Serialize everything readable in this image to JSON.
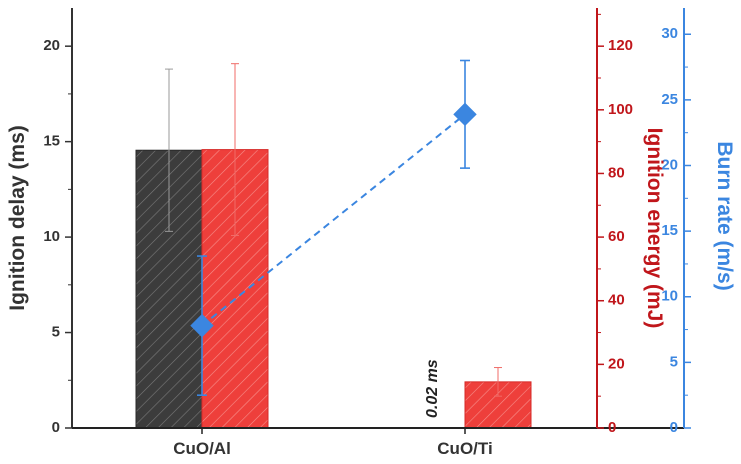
{
  "chart_data": {
    "type": "bar",
    "categories": [
      "CuO/Al",
      "CuO/Ti"
    ],
    "series": [
      {
        "name": "Ignition delay (ms)",
        "axis": "left",
        "type": "bar",
        "color": "#3c3c3c",
        "values": [
          14.55,
          0.02
        ],
        "errors": [
          4.25,
          0
        ]
      },
      {
        "name": "Ignition energy (mJ)",
        "axis": "right",
        "type": "bar",
        "color": "#e8312f",
        "values": [
          87.5,
          14.5
        ],
        "errors": [
          27,
          4.5
        ]
      },
      {
        "name": "Burn rate (m/s)",
        "axis": "right2",
        "type": "line",
        "style": "dashed",
        "marker": "diamond",
        "color": "#3b86e0",
        "values": [
          7.8,
          23.9
        ],
        "errors": [
          5.3,
          4.1
        ]
      }
    ],
    "axes": {
      "left": {
        "label": "Ignition delay (ms)",
        "range": [
          0,
          22
        ],
        "ticks": [
          0,
          5,
          10,
          15,
          20
        ],
        "color": "#333333"
      },
      "right": {
        "label": "Ignition energy (mJ)",
        "range": [
          0,
          132
        ],
        "ticks": [
          0,
          20,
          40,
          60,
          80,
          100,
          120
        ],
        "color": "#c0161b"
      },
      "right2": {
        "label": "Burn rate (m/s)",
        "range": [
          0,
          32
        ],
        "ticks": [
          0,
          5,
          10,
          15,
          20,
          25,
          30
        ],
        "color": "#3b86e0"
      }
    },
    "annotations": [
      {
        "text": "0.02 ms",
        "category": "CuO/Ti"
      }
    ],
    "grid": false,
    "legend": "none"
  }
}
